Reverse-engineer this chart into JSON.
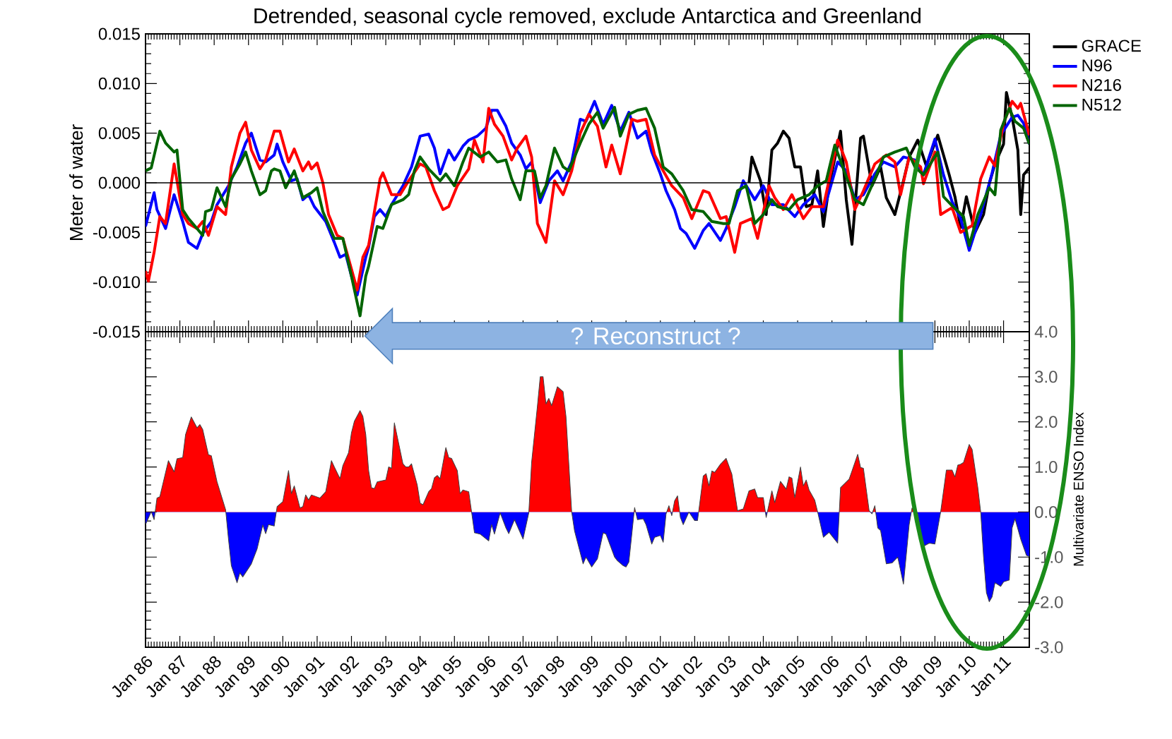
{
  "chart_data": [
    {
      "type": "line",
      "title": "Detrended, seasonal cycle removed, exclude Antarctica and Greenland",
      "ylabel": "Meter of water",
      "xlim": [
        "1986-01",
        "2011-10"
      ],
      "xticks": [
        {
          "value": "1986-01",
          "label": null
        },
        {
          "value": "1987-01",
          "label": null
        },
        {
          "value": "1988-01",
          "label": null
        },
        {
          "value": "1989-01",
          "label": null
        },
        {
          "value": "1990-01",
          "label": null
        },
        {
          "value": "1991-01",
          "label": null
        },
        {
          "value": "1992-01",
          "label": null
        },
        {
          "value": "1993-01",
          "label": null
        },
        {
          "value": "1994-01",
          "label": null
        },
        {
          "value": "1995-01",
          "label": null
        },
        {
          "value": "1996-01",
          "label": null
        },
        {
          "value": "1997-01",
          "label": null
        },
        {
          "value": "1998-01",
          "label": null
        },
        {
          "value": "1999-01",
          "label": null
        },
        {
          "value": "2000-01",
          "label": null
        },
        {
          "value": "2001-01",
          "label": null
        },
        {
          "value": "2002-01",
          "label": null
        },
        {
          "value": "2003-01",
          "label": null
        },
        {
          "value": "2004-01",
          "label": null
        },
        {
          "value": "2005-01",
          "label": null
        },
        {
          "value": "2006-01",
          "label": null
        },
        {
          "value": "2007-01",
          "label": null
        },
        {
          "value": "2008-01",
          "label": null
        },
        {
          "value": "2009-01",
          "label": null
        },
        {
          "value": "2010-01",
          "label": null
        },
        {
          "value": "2011-01",
          "label": null
        }
      ],
      "ylim": [
        -0.015,
        0.015
      ],
      "yticks": [
        {
          "value": -0.015,
          "label": "-0.015"
        },
        {
          "value": -0.01,
          "label": "-0.010"
        },
        {
          "value": -0.005,
          "label": "-0.005"
        },
        {
          "value": 0,
          "label": "0.000"
        },
        {
          "value": 0.005,
          "label": "0.005"
        },
        {
          "value": 0.01,
          "label": "0.010"
        },
        {
          "value": 0.015,
          "label": "0.015"
        }
      ],
      "tick_labels": "y",
      "legend": "top right",
      "ref_lines": [
        {
          "axis": "y",
          "value": 0,
          "color": "#000000"
        }
      ],
      "annotations": [
        "? Reconstruct ?"
      ],
      "series": [
        {
          "name": "GRACE",
          "color": "#000000",
          "x": [
            "2003-08",
            "2003-09",
            "2003-12",
            "2004-02",
            "2004-04",
            "2004-06",
            "2004-08",
            "2004-10",
            "2004-12",
            "2005-02",
            "2005-04",
            "2005-06",
            "2005-08",
            "2005-10",
            "2005-12",
            "2006-04",
            "2006-06",
            "2006-08",
            "2006-11",
            "2006-12",
            "2007-03",
            "2007-06",
            "2007-08",
            "2007-11",
            "2008-02",
            "2008-04",
            "2008-07",
            "2008-10",
            "2009-02",
            "2009-06",
            "2009-08",
            "2009-10",
            "2009-12",
            "2010-03",
            "2010-06",
            "2010-08",
            "2010-10",
            "2011-01",
            "2011-02",
            "2011-04",
            "2011-06",
            "2011-07",
            "2011-08",
            "2011-10"
          ],
          "values": [
            0.0,
            0.0026,
            0.0002,
            -0.0032,
            0.0033,
            0.004,
            0.0052,
            0.0045,
            0.0016,
            0.0016,
            -0.0024,
            -0.0022,
            0.0012,
            -0.0044,
            -0.0003,
            0.0052,
            -0.0017,
            -0.0062,
            0.0045,
            0.0047,
            -0.0003,
            0.0016,
            -0.0015,
            -0.0032,
            0.0002,
            0.0026,
            0.0043,
            0.0017,
            0.0048,
            0.0008,
            -0.0014,
            -0.0045,
            -0.0014,
            -0.005,
            -0.0032,
            -0.0001,
            0.0019,
            0.0039,
            0.0091,
            0.0066,
            0.0033,
            -0.0032,
            0.0008,
            0.0015
          ]
        },
        {
          "name": "N96",
          "color": "#0000ff",
          "x": [
            "1986-01",
            "1986-04",
            "1986-05",
            "1986-08",
            "1986-11",
            "1987-02",
            "1987-04",
            "1987-07",
            "1987-09",
            "1987-12",
            "1988-02",
            "1988-06",
            "1988-09",
            "1988-12",
            "1989-02",
            "1989-05",
            "1989-07",
            "1989-10",
            "1989-11",
            "1990-01",
            "1990-04",
            "1990-06",
            "1990-08",
            "1990-10",
            "1990-12",
            "1991-04",
            "1991-07",
            "1991-09",
            "1991-11",
            "1992-01",
            "1992-03",
            "1992-06",
            "1992-07",
            "1992-09",
            "1992-11",
            "1993-01",
            "1993-03",
            "1993-07",
            "1993-10",
            "1994-01",
            "1994-04",
            "1994-06",
            "1994-08",
            "1994-11",
            "1995-01",
            "1995-04",
            "1995-06",
            "1995-09",
            "1995-12",
            "1996-02",
            "1996-04",
            "1996-07",
            "1996-09",
            "1996-12",
            "1997-02",
            "1997-04",
            "1997-07",
            "1997-10",
            "1998-01",
            "1998-03",
            "1998-06",
            "1998-09",
            "1998-11",
            "1999-02",
            "1999-05",
            "1999-08",
            "1999-11",
            "2000-02",
            "2000-05",
            "2000-08",
            "2000-10",
            "2001-01",
            "2001-03",
            "2001-06",
            "2001-08",
            "2001-10",
            "2002-01",
            "2002-04",
            "2002-06",
            "2002-10",
            "2002-12",
            "2003-03",
            "2003-06",
            "2003-10",
            "2004-01",
            "2004-04",
            "2004-08",
            "2004-12",
            "2005-03",
            "2005-07",
            "2005-10",
            "2006-03",
            "2006-06",
            "2006-09",
            "2006-12",
            "2007-04",
            "2007-07",
            "2007-11",
            "2008-02",
            "2008-06",
            "2008-09",
            "2009-01",
            "2009-04",
            "2009-07",
            "2009-10",
            "2010-01",
            "2010-05",
            "2010-09",
            "2010-12",
            "2011-04",
            "2011-06",
            "2011-08",
            "2011-10"
          ],
          "values": [
            -0.0044,
            -0.001,
            -0.0027,
            -0.0046,
            -0.0012,
            -0.0039,
            -0.006,
            -0.0066,
            -0.0051,
            -0.0039,
            -0.0022,
            -0.0003,
            0.0016,
            0.004,
            0.005,
            0.0023,
            0.0021,
            0.0028,
            0.0039,
            0.0021,
            0.0002,
            0.0004,
            -0.0017,
            -0.0012,
            -0.0024,
            -0.0039,
            -0.006,
            -0.0075,
            -0.0072,
            -0.0094,
            -0.0113,
            -0.0075,
            -0.0065,
            -0.0034,
            -0.0027,
            -0.0034,
            -0.0022,
            -0.0003,
            0.0016,
            0.0047,
            0.0049,
            0.0035,
            0.0009,
            0.0033,
            0.0023,
            0.0037,
            0.0043,
            0.0047,
            0.0055,
            0.0073,
            0.0073,
            0.0057,
            0.004,
            0.0028,
            0.0014,
            0.0021,
            -0.002,
            0.0002,
            0.0012,
            0.0002,
            0.0021,
            0.0064,
            0.0062,
            0.0082,
            0.0059,
            0.0078,
            0.0052,
            0.0071,
            0.0045,
            0.0052,
            0.0031,
            0.0009,
            -0.0008,
            -0.0027,
            -0.0046,
            -0.0051,
            -0.0066,
            -0.0048,
            -0.0041,
            -0.0058,
            -0.0046,
            -0.0024,
            0.0002,
            -0.0017,
            -0.0003,
            -0.0022,
            -0.0022,
            -0.0034,
            -0.0022,
            -0.0012,
            -0.0029,
            0.0021,
            0.0012,
            -0.0017,
            -0.0012,
            0.0009,
            0.0021,
            0.0016,
            0.0026,
            0.0023,
            0.0008,
            0.0044,
            0.0008,
            -0.0019,
            -0.0036,
            -0.0068,
            -0.0032,
            0.001,
            0.0048,
            0.0066,
            0.0068,
            0.006,
            0.0039
          ]
        },
        {
          "name": "N216",
          "color": "#ff0000",
          "x": [
            "1986-01",
            "1986-02",
            "1986-04",
            "1986-06",
            "1986-08",
            "1986-11",
            "1987-02",
            "1987-04",
            "1987-07",
            "1987-09",
            "1987-11",
            "1988-02",
            "1988-05",
            "1988-07",
            "1988-10",
            "1988-12",
            "1989-02",
            "1989-05",
            "1989-07",
            "1989-10",
            "1989-12",
            "1990-03",
            "1990-05",
            "1990-08",
            "1990-10",
            "1990-11",
            "1991-01",
            "1991-03",
            "1991-05",
            "1991-08",
            "1991-10",
            "1992-01",
            "1992-03",
            "1992-05",
            "1992-07",
            "1992-11",
            "1992-12",
            "1993-03",
            "1993-06",
            "1993-09",
            "1994-01",
            "1994-03",
            "1994-06",
            "1994-09",
            "1994-11",
            "1995-02",
            "1995-06",
            "1995-08",
            "1995-11",
            "1996-01",
            "1996-03",
            "1996-06",
            "1996-09",
            "1996-11",
            "1997-02",
            "1997-04",
            "1997-06",
            "1997-09",
            "1997-12",
            "1998-03",
            "1998-06",
            "1998-09",
            "1998-12",
            "1999-03",
            "1999-06",
            "1999-08",
            "1999-11",
            "2000-03",
            "2000-05",
            "2000-08",
            "2000-11",
            "2001-02",
            "2001-05",
            "2001-09",
            "2001-12",
            "2002-04",
            "2002-06",
            "2002-10",
            "2002-12",
            "2003-03",
            "2003-05",
            "2003-09",
            "2003-11",
            "2004-03",
            "2004-05",
            "2004-08",
            "2004-11",
            "2005-03",
            "2005-06",
            "2005-10",
            "2006-03",
            "2006-06",
            "2006-09",
            "2006-12",
            "2007-04",
            "2007-08",
            "2007-11",
            "2008-01",
            "2008-04",
            "2008-08",
            "2008-09",
            "2009-01",
            "2009-03",
            "2009-07",
            "2009-10",
            "2010-02",
            "2010-05",
            "2010-08",
            "2010-10",
            "2011-01",
            "2011-04",
            "2011-06",
            "2011-07",
            "2011-10"
          ],
          "values": [
            -0.0089,
            -0.0099,
            -0.007,
            -0.0034,
            -0.0041,
            0.0019,
            -0.0032,
            -0.0041,
            -0.0046,
            -0.0039,
            -0.0053,
            -0.0024,
            -0.0032,
            0.0016,
            0.005,
            0.0061,
            0.0033,
            0.0014,
            0.0023,
            0.0052,
            0.0052,
            0.0021,
            0.0034,
            0.0012,
            0.0021,
            0.0014,
            0.002,
            0.0,
            -0.0032,
            -0.0053,
            -0.0056,
            -0.0087,
            -0.0108,
            -0.0075,
            -0.0063,
            0.0004,
            0.001,
            -0.0012,
            -0.0012,
            0.0002,
            0.0019,
            0.0016,
            -0.0008,
            -0.0027,
            -0.0024,
            -0.0003,
            0.0014,
            0.0043,
            0.0021,
            0.0075,
            0.0059,
            0.0047,
            0.0023,
            0.0035,
            0.0047,
            0.0026,
            -0.0041,
            -0.006,
            0.0002,
            -0.0012,
            0.0012,
            0.005,
            0.0069,
            0.0057,
            0.0016,
            0.0038,
            0.0009,
            0.0064,
            0.0062,
            0.0064,
            0.0028,
            0.0012,
            -0.0003,
            -0.0015,
            -0.0036,
            -0.0008,
            -0.001,
            -0.0036,
            -0.0034,
            -0.007,
            -0.0041,
            -0.0036,
            -0.0056,
            -0.0003,
            -0.0015,
            -0.0027,
            -0.0012,
            -0.0036,
            -0.0024,
            -0.0024,
            0.0043,
            0.0021,
            -0.0027,
            -0.0008,
            0.0019,
            0.0028,
            0.0021,
            -0.0012,
            0.0026,
            0.0016,
            -0.0001,
            0.0031,
            -0.0032,
            -0.0025,
            -0.005,
            -0.0043,
            0.0004,
            0.0026,
            0.0017,
            0.006,
            0.0082,
            0.0075,
            0.008,
            0.0048
          ]
        },
        {
          "name": "N512",
          "color": "#006400",
          "x": [
            "1986-01",
            "1986-03",
            "1986-06",
            "1986-08",
            "1986-11",
            "1986-12",
            "1987-02",
            "1987-04",
            "1987-07",
            "1987-09",
            "1987-10",
            "1987-12",
            "1988-02",
            "1988-05",
            "1988-07",
            "1988-10",
            "1988-12",
            "1989-02",
            "1989-05",
            "1989-07",
            "1989-09",
            "1989-10",
            "1989-12",
            "1990-02",
            "1990-05",
            "1990-08",
            "1990-11",
            "1991-01",
            "1991-03",
            "1991-07",
            "1991-10",
            "1992-01",
            "1992-04",
            "1992-06",
            "1992-07",
            "1992-10",
            "1992-12",
            "1993-03",
            "1993-07",
            "1993-09",
            "1993-11",
            "1994-01",
            "1994-04",
            "1994-08",
            "1994-10",
            "1995-01",
            "1995-04",
            "1995-06",
            "1995-10",
            "1996-01",
            "1996-04",
            "1996-07",
            "1996-09",
            "1996-12",
            "1997-02",
            "1997-05",
            "1997-07",
            "1997-09",
            "1997-12",
            "1998-03",
            "1998-05",
            "1998-09",
            "1998-12",
            "1999-03",
            "1999-05",
            "1999-09",
            "1999-11",
            "2000-02",
            "2000-05",
            "2000-08",
            "2000-11",
            "2001-02",
            "2001-05",
            "2001-09",
            "2001-12",
            "2002-04",
            "2002-07",
            "2002-11",
            "2003-01",
            "2003-04",
            "2003-07",
            "2003-10",
            "2004-01",
            "2004-04",
            "2004-06",
            "2004-10",
            "2005-01",
            "2005-05",
            "2005-08",
            "2005-11",
            "2006-02",
            "2006-05",
            "2006-09",
            "2006-12",
            "2007-04",
            "2007-07",
            "2007-11",
            "2008-03",
            "2008-06",
            "2008-09",
            "2009-02",
            "2009-04",
            "2009-07",
            "2009-11",
            "2010-01",
            "2010-04",
            "2010-08",
            "2010-10",
            "2010-12",
            "2011-03",
            "2011-05",
            "2011-08",
            "2011-10"
          ],
          "values": [
            0.0012,
            0.0015,
            0.0052,
            0.004,
            0.0031,
            0.0033,
            -0.0027,
            -0.0036,
            -0.0046,
            -0.0053,
            -0.0029,
            -0.0027,
            -0.0005,
            -0.0024,
            0.0004,
            0.0019,
            0.0031,
            0.0012,
            -0.0012,
            -0.0008,
            0.0012,
            0.0014,
            0.0012,
            -0.0005,
            0.0012,
            -0.0015,
            -0.001,
            -0.0005,
            -0.0029,
            -0.0056,
            -0.0056,
            -0.0094,
            -0.0134,
            -0.0094,
            -0.0084,
            -0.0044,
            -0.0046,
            -0.0022,
            -0.0017,
            -0.0012,
            0.0012,
            0.0026,
            0.0014,
            0.0002,
            0.0009,
            -0.0003,
            0.0021,
            0.0035,
            0.0026,
            0.0031,
            0.0021,
            0.0023,
            0.0004,
            -0.0017,
            0.0012,
            0.0012,
            -0.0015,
            -0.0003,
            0.0035,
            0.0016,
            0.0012,
            0.004,
            0.0059,
            0.0071,
            0.0055,
            0.0076,
            0.0047,
            0.0069,
            0.0073,
            0.0075,
            0.0055,
            0.0016,
            0.0009,
            -0.0008,
            -0.0027,
            -0.0029,
            -0.0039,
            -0.0041,
            -0.0041,
            -0.0008,
            -0.0003,
            -0.0041,
            -0.0032,
            -0.0017,
            -0.0024,
            -0.0027,
            -0.0017,
            -0.0012,
            -0.0003,
            0.0002,
            0.0038,
            0.0014,
            -0.0017,
            -0.0022,
            0.0004,
            0.0026,
            0.0031,
            0.0035,
            0.0016,
            0.0008,
            0.0031,
            -0.0014,
            -0.0023,
            -0.0034,
            -0.0063,
            -0.0032,
            -0.0005,
            -0.0012,
            0.0053,
            0.0075,
            0.0062,
            0.0055,
            0.0039
          ]
        }
      ]
    },
    {
      "type": "area",
      "ylabel": "Multivariate ENSO Index",
      "xlim": [
        "1986-01",
        "2011-10"
      ],
      "xticks": [
        {
          "value": "1986-01",
          "label": "Jan 86"
        },
        {
          "value": "1987-01",
          "label": "Jan 87"
        },
        {
          "value": "1988-01",
          "label": "Jan 88"
        },
        {
          "value": "1989-01",
          "label": "Jan 89"
        },
        {
          "value": "1990-01",
          "label": "Jan 90"
        },
        {
          "value": "1991-01",
          "label": "Jan 91"
        },
        {
          "value": "1992-01",
          "label": "Jan 92"
        },
        {
          "value": "1993-01",
          "label": "Jan 93"
        },
        {
          "value": "1994-01",
          "label": "Jan 94"
        },
        {
          "value": "1995-01",
          "label": "Jan 95"
        },
        {
          "value": "1996-01",
          "label": "Jan 96"
        },
        {
          "value": "1997-01",
          "label": "Jan 97"
        },
        {
          "value": "1998-01",
          "label": "Jan 98"
        },
        {
          "value": "1999-01",
          "label": "Jan 99"
        },
        {
          "value": "2000-01",
          "label": "Jan 00"
        },
        {
          "value": "2001-01",
          "label": "Jan 01"
        },
        {
          "value": "2002-01",
          "label": "Jan 02"
        },
        {
          "value": "2003-01",
          "label": "Jan 03"
        },
        {
          "value": "2004-01",
          "label": "Jan 04"
        },
        {
          "value": "2005-01",
          "label": "Jan 05"
        },
        {
          "value": "2006-01",
          "label": "Jan 06"
        },
        {
          "value": "2007-01",
          "label": "Jan 07"
        },
        {
          "value": "2008-01",
          "label": "Jan 08"
        },
        {
          "value": "2009-01",
          "label": "Jan 09"
        },
        {
          "value": "2010-01",
          "label": "Jan 10"
        },
        {
          "value": "2011-01",
          "label": "Jan 11"
        }
      ],
      "ylim": [
        -3,
        4
      ],
      "yticks": [
        {
          "value": -3,
          "label": "-3.0"
        },
        {
          "value": -2,
          "label": "-2.0"
        },
        {
          "value": -1,
          "label": "-1.0"
        },
        {
          "value": 0,
          "label": "0.0"
        },
        {
          "value": 1,
          "label": "1.0"
        },
        {
          "value": 2,
          "label": "2.0"
        },
        {
          "value": 3,
          "label": "3.0"
        },
        {
          "value": 4,
          "label": "4.0"
        }
      ],
      "colors": [
        "#ff0000",
        "#0000ff"
      ],
      "series": [
        {
          "color": "#404040",
          "x": [
            "1986-01",
            "1986-03",
            "1986-04",
            "1986-05",
            "1986-06",
            "1986-09",
            "1986-11",
            "1986-12",
            "1987-02",
            "1987-03",
            "1987-05",
            "1987-07",
            "1987-08",
            "1987-09",
            "1987-11",
            "1987-12",
            "1988-02",
            "1988-05",
            "1988-06",
            "1988-07",
            "1988-09",
            "1988-10",
            "1988-11",
            "1989-02",
            "1989-04",
            "1989-06",
            "1989-07",
            "1989-08",
            "1989-10",
            "1989-11",
            "1990-01",
            "1990-03",
            "1990-04",
            "1990-05",
            "1990-07",
            "1990-08",
            "1990-09",
            "1990-10",
            "1990-11",
            "1991-02",
            "1991-04",
            "1991-06",
            "1991-07",
            "1991-09",
            "1991-10",
            "1991-12",
            "1992-01",
            "1992-02",
            "1992-04",
            "1992-05",
            "1992-06",
            "1992-07",
            "1992-08",
            "1992-09",
            "1992-10",
            "1993-01",
            "1993-02",
            "1993-03",
            "1993-04",
            "1993-07",
            "1993-08",
            "1993-09",
            "1993-10",
            "1993-12",
            "1994-01",
            "1994-02",
            "1994-04",
            "1994-05",
            "1994-06",
            "1994-07",
            "1994-08",
            "1994-10",
            "1994-11",
            "1994-12",
            "1995-02",
            "1995-03",
            "1995-04",
            "1995-06",
            "1995-07",
            "1995-08",
            "1995-10",
            "1996-01",
            "1996-02",
            "1996-03",
            "1996-05",
            "1996-07",
            "1996-08",
            "1996-10",
            "1997-01",
            "1997-03",
            "1997-04",
            "1997-06",
            "1997-07",
            "1997-08",
            "1997-09",
            "1997-10",
            "1997-11",
            "1998-01",
            "1998-03",
            "1998-04",
            "1998-06",
            "1998-07",
            "1998-10",
            "1998-11",
            "1999-01",
            "1999-03",
            "1999-05",
            "1999-06",
            "1999-09",
            "1999-10",
            "1999-12",
            "2000-01",
            "2000-02",
            "2000-04",
            "2000-05",
            "2000-07",
            "2000-08",
            "2000-10",
            "2000-11",
            "2001-01",
            "2001-02",
            "2001-03",
            "2001-04",
            "2001-05",
            "2001-06",
            "2001-07",
            "2001-08",
            "2001-09",
            "2001-11",
            "2002-01",
            "2002-02",
            "2002-04",
            "2002-05",
            "2002-06",
            "2002-07",
            "2002-08",
            "2002-10",
            "2002-12",
            "2003-02",
            "2003-04",
            "2003-06",
            "2003-08",
            "2003-10",
            "2003-11",
            "2004-01",
            "2004-02",
            "2004-04",
            "2004-05",
            "2004-07",
            "2004-09",
            "2004-10",
            "2004-11",
            "2004-12",
            "2005-02",
            "2005-03",
            "2005-04",
            "2005-05",
            "2005-07",
            "2005-08",
            "2005-10",
            "2005-12",
            "2006-03",
            "2006-04",
            "2006-07",
            "2006-08",
            "2006-10",
            "2006-11",
            "2006-12",
            "2007-02",
            "2007-03",
            "2007-04",
            "2007-05",
            "2007-06",
            "2007-08",
            "2007-10",
            "2007-12",
            "2008-02",
            "2008-04",
            "2008-05",
            "2008-07",
            "2008-09",
            "2008-11",
            "2009-01",
            "2009-03",
            "2009-05",
            "2009-07",
            "2009-08",
            "2009-09",
            "2009-10",
            "2009-11",
            "2010-01",
            "2010-02",
            "2010-04",
            "2010-05",
            "2010-06",
            "2010-07",
            "2010-08",
            "2010-09",
            "2010-10",
            "2010-12",
            "2011-01",
            "2011-03",
            "2011-04",
            "2011-05",
            "2011-07",
            "2011-09",
            "2011-10"
          ],
          "values": [
            -0.28,
            0.01,
            -0.17,
            0.31,
            0.34,
            1.14,
            0.89,
            1.18,
            1.21,
            1.72,
            2.11,
            1.87,
            1.94,
            1.83,
            1.27,
            1.25,
            0.67,
            0.05,
            -0.6,
            -1.19,
            -1.57,
            -1.35,
            -1.44,
            -1.15,
            -0.82,
            -0.29,
            -0.48,
            -0.28,
            -0.31,
            0.12,
            0.23,
            0.92,
            0.41,
            0.58,
            0.09,
            0.12,
            0.38,
            0.27,
            0.38,
            0.31,
            0.45,
            1.14,
            1.0,
            0.74,
            1.03,
            1.32,
            1.76,
            2.01,
            2.25,
            2.12,
            1.72,
            0.92,
            0.54,
            0.52,
            0.67,
            0.71,
            1.0,
            0.97,
            1.98,
            1.07,
            1.0,
            1.0,
            1.07,
            0.6,
            0.2,
            0.16,
            0.45,
            0.52,
            0.76,
            0.81,
            0.74,
            1.43,
            1.21,
            1.19,
            0.92,
            0.41,
            0.49,
            0.45,
            0,
            -0.46,
            -0.49,
            -0.64,
            -0.28,
            -0.49,
            -0.02,
            -0.35,
            -0.48,
            -0.17,
            -0.6,
            -0.02,
            1.11,
            2.34,
            3.0,
            3.0,
            2.4,
            2.52,
            2.36,
            2.78,
            2.67,
            2.12,
            0,
            -0.42,
            -1.15,
            -1.0,
            -1.22,
            -1.04,
            -0.46,
            -0.49,
            -1.0,
            -1.08,
            -1.19,
            -1.22,
            -1.11,
            0.1,
            -0.17,
            -0.15,
            -0.28,
            -0.71,
            -0.56,
            -0.52,
            -0.67,
            -0.04,
            0.14,
            -0.08,
            0.25,
            0.36,
            -0.12,
            -0.28,
            0,
            -0.19,
            -0.19,
            0.8,
            0.85,
            0.58,
            0.91,
            0.88,
            1.06,
            1.19,
            0.84,
            0.03,
            0.07,
            0.47,
            0.51,
            0.32,
            0.32,
            -0.12,
            0.47,
            0.21,
            0.68,
            0.51,
            0.78,
            0.75,
            0.32,
            1.0,
            0.58,
            0.71,
            0.49,
            0.26,
            0,
            -0.56,
            -0.45,
            -0.69,
            0.54,
            0.73,
            0.91,
            1.28,
            0.99,
            0.97,
            0.03,
            -0.04,
            0.14,
            -0.35,
            -0.41,
            -1.15,
            -1.13,
            -1.0,
            -1.6,
            -0.28,
            0.09,
            -0.04,
            -0.76,
            -0.69,
            -0.71,
            0,
            0.93,
            0.93,
            0.78,
            1.04,
            1.06,
            1.1,
            1.5,
            1.39,
            0.54,
            0,
            -1.0,
            -1.79,
            -1.99,
            -1.88,
            -1.57,
            -1.65,
            -1.55,
            -1.51,
            -0.35,
            -0.15,
            -0.6,
            -0.96,
            -0.99
          ]
        }
      ]
    }
  ]
}
